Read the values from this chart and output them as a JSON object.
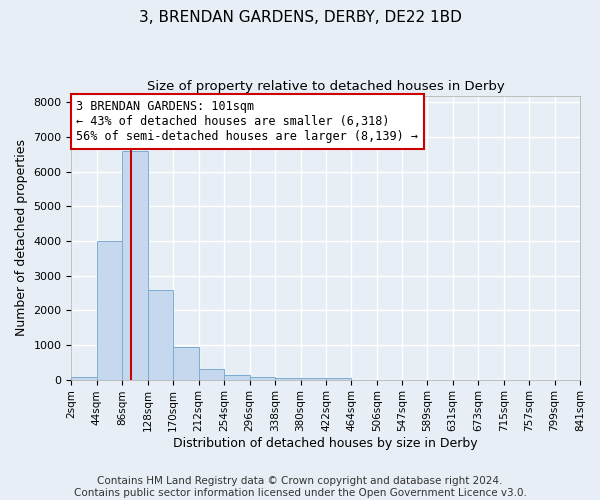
{
  "title": "3, BRENDAN GARDENS, DERBY, DE22 1BD",
  "subtitle": "Size of property relative to detached houses in Derby",
  "xlabel": "Distribution of detached houses by size in Derby",
  "ylabel": "Number of detached properties",
  "bin_labels": [
    "2sqm",
    "44sqm",
    "86sqm",
    "128sqm",
    "170sqm",
    "212sqm",
    "254sqm",
    "296sqm",
    "338sqm",
    "380sqm",
    "422sqm",
    "464sqm",
    "506sqm",
    "547sqm",
    "589sqm",
    "631sqm",
    "673sqm",
    "715sqm",
    "757sqm",
    "799sqm",
    "841sqm"
  ],
  "bin_edges": [
    2,
    44,
    86,
    128,
    170,
    212,
    254,
    296,
    338,
    380,
    422,
    464,
    506,
    547,
    589,
    631,
    673,
    715,
    757,
    799,
    841
  ],
  "bar_heights": [
    80,
    4000,
    6600,
    2600,
    950,
    310,
    130,
    80,
    50,
    60,
    50,
    0,
    0,
    0,
    0,
    0,
    0,
    0,
    0,
    0
  ],
  "bar_color": "#c5d8ee",
  "bar_edge_color": "#7aadd4",
  "background_color": "#e8eef5",
  "grid_color": "#ffffff",
  "property_size": 101,
  "red_line_color": "#cc0000",
  "annotation_text": "3 BRENDAN GARDENS: 101sqm\n← 43% of detached houses are smaller (6,318)\n56% of semi-detached houses are larger (8,139) →",
  "annotation_box_color": "#ffffff",
  "annotation_box_edge_color": "#cc0000",
  "ylim": [
    0,
    8200
  ],
  "footer_text": "Contains HM Land Registry data © Crown copyright and database right 2024.\nContains public sector information licensed under the Open Government Licence v3.0.",
  "title_fontsize": 11,
  "subtitle_fontsize": 9.5,
  "annot_fontsize": 8.5,
  "xlabel_fontsize": 9,
  "ylabel_fontsize": 9,
  "footer_fontsize": 7.5
}
